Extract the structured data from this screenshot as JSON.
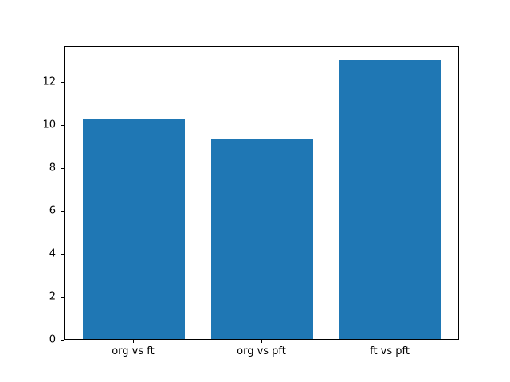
{
  "figure": {
    "background": "#ffffff",
    "bar_color": "#1f77b4",
    "axis_color": "#000000"
  },
  "chart_data": {
    "type": "bar",
    "title": "",
    "xlabel": "",
    "ylabel": "",
    "categories": [
      "org vs ft",
      "org vs pft",
      "ft vs pft"
    ],
    "values": [
      10.2,
      9.3,
      13.0
    ],
    "yticks": [
      0,
      2,
      4,
      6,
      8,
      10,
      12
    ],
    "ylim": [
      0,
      13.65
    ],
    "bar_width_ratio": 0.8,
    "grid": false,
    "legend_position": "none"
  }
}
